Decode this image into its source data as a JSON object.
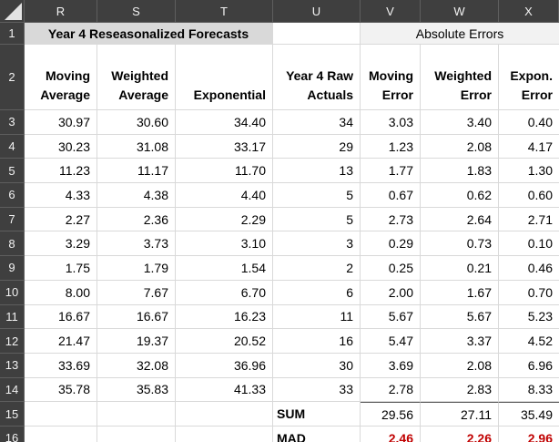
{
  "titles": {
    "left": "Year 4 Reseasonalized Forecasts",
    "right": "Absolute Errors"
  },
  "column_headers": [
    "R",
    "S",
    "T",
    "U",
    "V",
    "W",
    "X"
  ],
  "row_numbers": [
    "1",
    "2",
    "3",
    "4",
    "5",
    "6",
    "7",
    "8",
    "9",
    "10",
    "11",
    "12",
    "13",
    "14",
    "15",
    "16"
  ],
  "subheaders": {
    "R": [
      "Moving",
      "Average"
    ],
    "S": [
      "Weighted",
      "Average"
    ],
    "T": [
      "Exponential"
    ],
    "U": [
      "Year 4 Raw",
      "Actuals"
    ],
    "V": [
      "Moving",
      "Error"
    ],
    "W": [
      "Weighted",
      "Error"
    ],
    "X": [
      "Expon.",
      "Error"
    ]
  },
  "data_rows": [
    {
      "row": "3",
      "cells": {
        "R": "30.97",
        "S": "30.60",
        "T": "34.40",
        "U": "34",
        "V": "3.03",
        "W": "3.40",
        "X": "0.40"
      }
    },
    {
      "row": "4",
      "cells": {
        "R": "30.23",
        "S": "31.08",
        "T": "33.17",
        "U": "29",
        "V": "1.23",
        "W": "2.08",
        "X": "4.17"
      }
    },
    {
      "row": "5",
      "cells": {
        "R": "11.23",
        "S": "11.17",
        "T": "11.70",
        "U": "13",
        "V": "1.77",
        "W": "1.83",
        "X": "1.30"
      }
    },
    {
      "row": "6",
      "cells": {
        "R": "4.33",
        "S": "4.38",
        "T": "4.40",
        "U": "5",
        "V": "0.67",
        "W": "0.62",
        "X": "0.60"
      }
    },
    {
      "row": "7",
      "cells": {
        "R": "2.27",
        "S": "2.36",
        "T": "2.29",
        "U": "5",
        "V": "2.73",
        "W": "2.64",
        "X": "2.71"
      }
    },
    {
      "row": "8",
      "cells": {
        "R": "3.29",
        "S": "3.73",
        "T": "3.10",
        "U": "3",
        "V": "0.29",
        "W": "0.73",
        "X": "0.10"
      }
    },
    {
      "row": "9",
      "cells": {
        "R": "1.75",
        "S": "1.79",
        "T": "1.54",
        "U": "2",
        "V": "0.25",
        "W": "0.21",
        "X": "0.46"
      }
    },
    {
      "row": "10",
      "cells": {
        "R": "8.00",
        "S": "7.67",
        "T": "6.70",
        "U": "6",
        "V": "2.00",
        "W": "1.67",
        "X": "0.70"
      }
    },
    {
      "row": "11",
      "cells": {
        "R": "16.67",
        "S": "16.67",
        "T": "16.23",
        "U": "11",
        "V": "5.67",
        "W": "5.67",
        "X": "5.23"
      }
    },
    {
      "row": "12",
      "cells": {
        "R": "21.47",
        "S": "19.37",
        "T": "20.52",
        "U": "16",
        "V": "5.47",
        "W": "3.37",
        "X": "4.52"
      }
    },
    {
      "row": "13",
      "cells": {
        "R": "33.69",
        "S": "32.08",
        "T": "36.96",
        "U": "30",
        "V": "3.69",
        "W": "2.08",
        "X": "6.96"
      }
    },
    {
      "row": "14",
      "cells": {
        "R": "35.78",
        "S": "35.83",
        "T": "41.33",
        "U": "33",
        "V": "2.78",
        "W": "2.83",
        "X": "8.33"
      }
    }
  ],
  "summary_rows": [
    {
      "row": "15",
      "label": "SUM",
      "style": "sum",
      "cells": {
        "V": "29.56",
        "W": "27.11",
        "X": "35.49"
      }
    },
    {
      "row": "16",
      "label": "MAD",
      "style": "mad",
      "cells": {
        "V": "2.46",
        "W": "2.26",
        "X": "2.96"
      }
    }
  ],
  "colors": {
    "header_bg": "#3f3f3f",
    "header_text": "#f2f2f2",
    "left_title_fill": "#d9d9d9",
    "right_title_fill": "#f2f2f2",
    "gridline": "#d9d9d9",
    "sum_top_border": "#595959",
    "mad_value_color": "#c00000",
    "cell_text": "#000000"
  }
}
